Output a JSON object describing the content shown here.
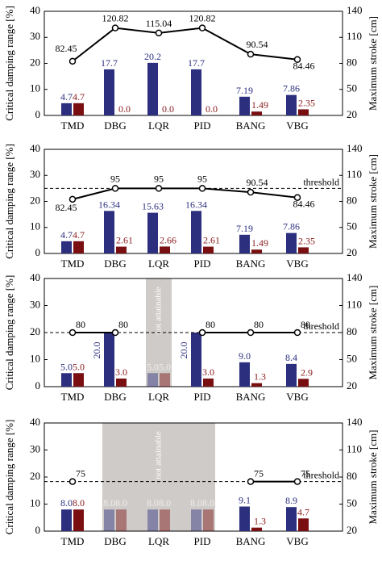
{
  "colors": {
    "bar_primary": "#2b2f7e",
    "bar_secondary": "#7a0f12",
    "label_primary": "#2b2f7e",
    "label_secondary": "#8a1a1c",
    "line": "#000000",
    "unattainable_shade": "#cfcbc8"
  },
  "chart_data": [
    {
      "type": "bar",
      "categories": [
        "TMD",
        "DBG",
        "LQR",
        "PID",
        "BANG",
        "VBG"
      ],
      "ylabel": "Critical damping range [%]",
      "y2label": "Maximum stroke [cm]",
      "ylim": [
        0,
        40
      ],
      "y2lim": [
        20,
        140
      ],
      "yticks": [
        "0",
        "10",
        "20",
        "30",
        "40"
      ],
      "y2ticks": [
        "20",
        "50",
        "80",
        "110",
        "140"
      ],
      "series": [
        {
          "values": [
            4.7,
            17.7,
            20.2,
            17.7,
            7.19,
            7.86
          ],
          "labels": [
            "4.7",
            "17.7",
            "20.2",
            "17.7",
            "7.19",
            "7.86"
          ]
        },
        {
          "values": [
            4.7,
            0.0,
            0.0,
            0.0,
            1.49,
            2.35
          ],
          "labels": [
            "4.7",
            "0.0",
            "0.0",
            "0.0",
            "1.49",
            "2.35"
          ]
        }
      ],
      "line": {
        "values": [
          82.45,
          120.82,
          115.04,
          120.82,
          90.54,
          84.46
        ],
        "labels": [
          "82.45",
          "120.82",
          "115.04",
          "120.82",
          "90.54",
          "84.46"
        ]
      },
      "threshold": null,
      "unattainable": []
    },
    {
      "type": "bar",
      "categories": [
        "TMD",
        "DBG",
        "LQR",
        "PID",
        "BANG",
        "VBG"
      ],
      "ylabel": "Critical damping range [%]",
      "y2label": "Maximum stroke [cm]",
      "ylim": [
        0,
        40
      ],
      "y2lim": [
        20,
        140
      ],
      "yticks": [
        "0",
        "10",
        "20",
        "30",
        "40"
      ],
      "y2ticks": [
        "20",
        "50",
        "80",
        "110",
        "140"
      ],
      "series": [
        {
          "values": [
            4.7,
            16.34,
            15.63,
            16.34,
            7.19,
            7.86
          ],
          "labels": [
            "4.7",
            "16.34",
            "15.63",
            "16.34",
            "7.19",
            "7.86"
          ]
        },
        {
          "values": [
            4.7,
            2.61,
            2.66,
            2.61,
            1.49,
            2.35
          ],
          "labels": [
            "4.7",
            "2.61",
            "2.66",
            "2.61",
            "1.49",
            "2.35"
          ]
        }
      ],
      "line": {
        "values": [
          82.45,
          95,
          95,
          95,
          90.54,
          84.46
        ],
        "labels": [
          "82.45",
          "95",
          "95",
          "95",
          "90.54",
          "84.46"
        ]
      },
      "threshold": {
        "value": 95,
        "label": "threshold"
      },
      "unattainable": []
    },
    {
      "type": "bar",
      "categories": [
        "TMD",
        "DBG",
        "LQR",
        "PID",
        "BANG",
        "VBG"
      ],
      "ylabel": "Critical damping range [%]",
      "y2label": "Maximum stroke [cm]",
      "ylim": [
        0,
        40
      ],
      "y2lim": [
        20,
        140
      ],
      "yticks": [
        "0",
        "10",
        "20",
        "30",
        "40"
      ],
      "y2ticks": [
        "20",
        "50",
        "80",
        "110",
        "140"
      ],
      "series": [
        {
          "values": [
            5.0,
            20.0,
            5.0,
            20.0,
            9.0,
            8.4
          ],
          "labels": [
            "5.0",
            "20.0",
            "5.0",
            "20.0",
            "9.0",
            "8.4"
          ]
        },
        {
          "values": [
            5.0,
            3.0,
            5.0,
            3.0,
            1.3,
            2.9
          ],
          "labels": [
            "5.0",
            "3.0",
            "5.0",
            "3.0",
            "1.3",
            "2.9"
          ]
        }
      ],
      "line": {
        "values": [
          80,
          80,
          null,
          80,
          80,
          80
        ],
        "labels": [
          "80",
          "80",
          "",
          "80",
          "80",
          "80"
        ]
      },
      "threshold": {
        "value": 80,
        "label": "threshold"
      },
      "unattainable": [
        2
      ],
      "unattainable_label": "not attainable"
    },
    {
      "type": "bar",
      "categories": [
        "TMD",
        "DBG",
        "LQR",
        "PID",
        "BANG",
        "VBG"
      ],
      "ylabel": "Critical damping range [%]",
      "y2label": "Maximum stroke [cm]",
      "ylim": [
        0,
        40
      ],
      "y2lim": [
        20,
        140
      ],
      "yticks": [
        "0",
        "10",
        "20",
        "30",
        "40"
      ],
      "y2ticks": [
        "20",
        "50",
        "80",
        "110",
        "140"
      ],
      "series": [
        {
          "values": [
            8.0,
            8.0,
            8.0,
            8.0,
            9.1,
            8.9
          ],
          "labels": [
            "8.0",
            "8.0",
            "8.0",
            "8.0",
            "9.1",
            "8.9"
          ]
        },
        {
          "values": [
            8.0,
            8.0,
            8.0,
            8.0,
            1.3,
            4.7
          ],
          "labels": [
            "8.0",
            "8.0",
            "8.0",
            "8.0",
            "1.3",
            "4.7"
          ]
        }
      ],
      "line": {
        "values": [
          75,
          null,
          null,
          null,
          75,
          75
        ],
        "labels": [
          "75",
          "",
          "",
          "",
          "75",
          "75"
        ]
      },
      "threshold": {
        "value": 75,
        "label": "threshold"
      },
      "unattainable": [
        1,
        2,
        3
      ],
      "unattainable_label": "not attainable"
    }
  ]
}
